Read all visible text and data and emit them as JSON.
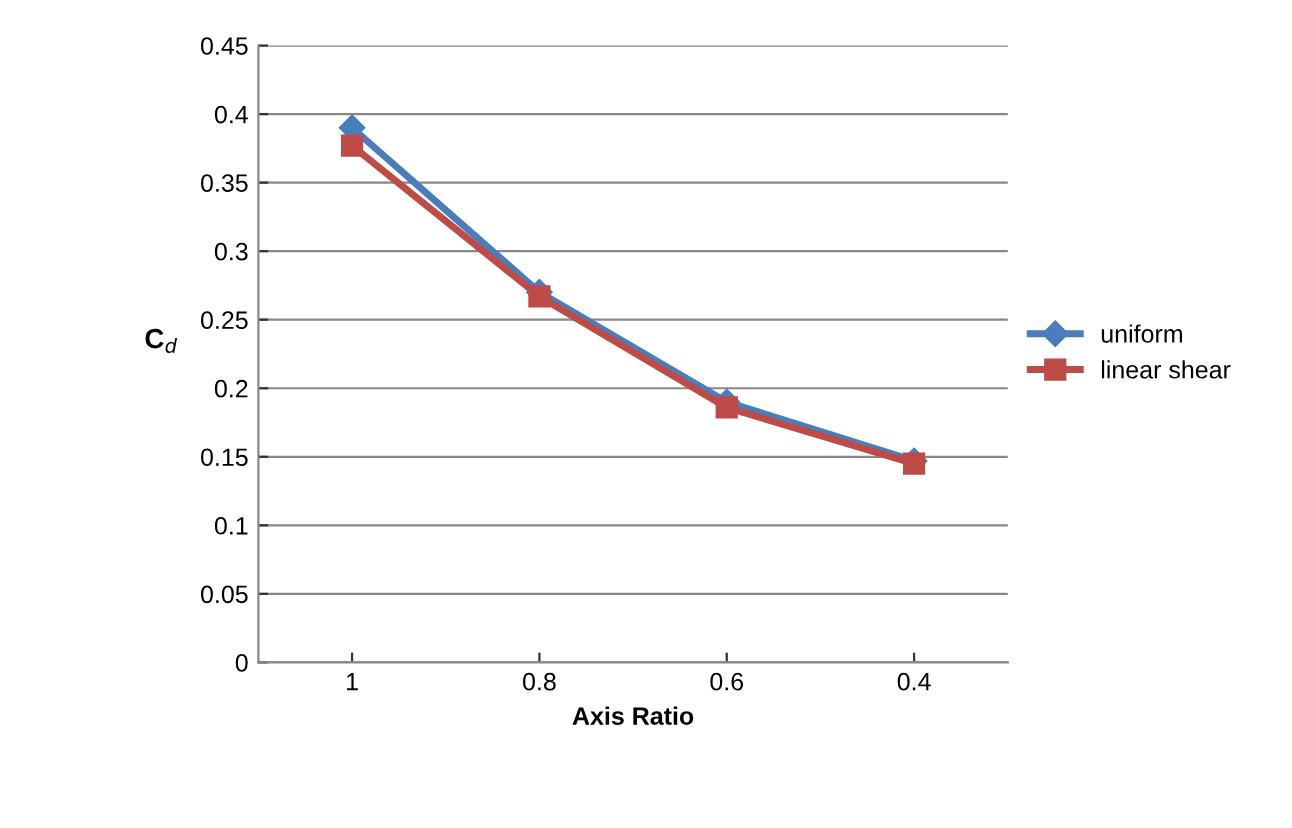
{
  "chart_data": {
    "type": "line",
    "xlabel": "Axis Ratio",
    "ylabel": "C$_{d}$",
    "categories": [
      "1",
      "0.8",
      "0.6",
      "0.4"
    ],
    "series": [
      {
        "name": "uniform",
        "color": "#4a7ebb",
        "marker": "diamond",
        "values": [
          0.39,
          0.27,
          0.19,
          0.147
        ]
      },
      {
        "name": "linear shear",
        "color": "#be4b48",
        "marker": "square",
        "values": [
          0.377,
          0.267,
          0.186,
          0.145
        ]
      }
    ],
    "ylim": [
      0,
      0.45
    ],
    "yticks": [
      0,
      0.05,
      0.1,
      0.15,
      0.2,
      0.25,
      0.3,
      0.35,
      0.4,
      0.45
    ],
    "grid": "y",
    "legend": "right",
    "line_style": "solid"
  }
}
